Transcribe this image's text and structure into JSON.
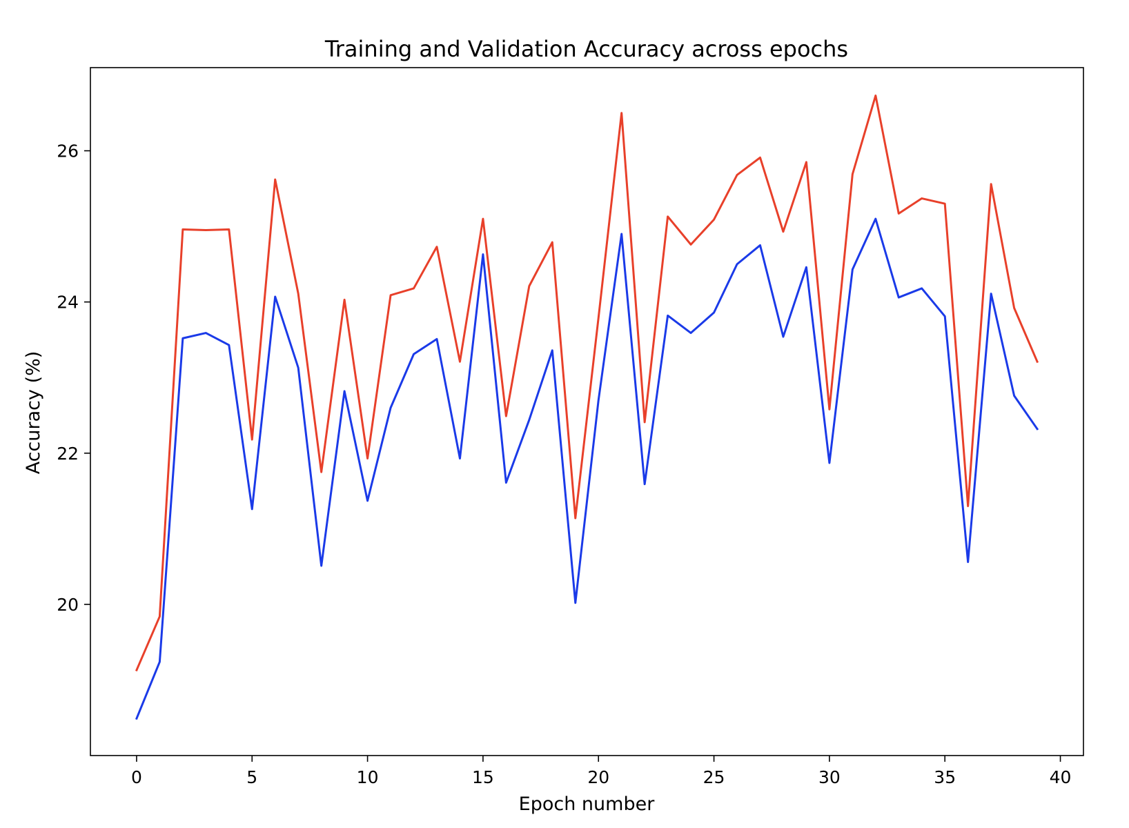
{
  "chart_data": {
    "type": "line",
    "title": "Training and Validation Accuracy across epochs",
    "xlabel": "Epoch number",
    "ylabel": "Accuracy (%)",
    "xlim": [
      -2,
      41
    ],
    "ylim": [
      18.0,
      27.1
    ],
    "xticks": [
      0,
      5,
      10,
      15,
      20,
      25,
      30,
      35,
      40
    ],
    "yticks": [
      20,
      22,
      24,
      26
    ],
    "grid": false,
    "legend": "none",
    "x": [
      0,
      1,
      2,
      3,
      4,
      5,
      6,
      7,
      8,
      9,
      10,
      11,
      12,
      13,
      14,
      15,
      16,
      17,
      18,
      19,
      20,
      21,
      22,
      23,
      24,
      25,
      26,
      27,
      28,
      29,
      30,
      31,
      32,
      33,
      34,
      35,
      36,
      37,
      38,
      39
    ],
    "series": [
      {
        "color": "#e8402a",
        "values": [
          19.13,
          19.84,
          24.96,
          24.95,
          24.96,
          22.18,
          25.62,
          24.11,
          21.75,
          24.03,
          21.93,
          24.09,
          24.18,
          24.73,
          23.21,
          25.1,
          22.49,
          24.21,
          24.79,
          21.14,
          23.79,
          26.5,
          22.41,
          25.13,
          24.76,
          25.09,
          25.68,
          25.91,
          24.93,
          25.85,
          22.58,
          25.69,
          26.73,
          25.17,
          25.37,
          25.3,
          21.3,
          25.56,
          23.92,
          23.21
        ]
      },
      {
        "color": "#1a3ae8",
        "values": [
          18.49,
          19.24,
          23.52,
          23.59,
          23.43,
          21.26,
          24.07,
          23.13,
          20.51,
          22.82,
          21.37,
          22.6,
          23.31,
          23.51,
          21.93,
          24.63,
          21.61,
          22.44,
          23.36,
          20.02,
          22.7,
          24.9,
          21.59,
          23.82,
          23.59,
          23.86,
          24.5,
          24.75,
          23.54,
          24.46,
          21.87,
          24.43,
          25.1,
          24.06,
          24.18,
          23.81,
          20.56,
          24.11,
          22.76,
          22.32
        ]
      }
    ]
  }
}
